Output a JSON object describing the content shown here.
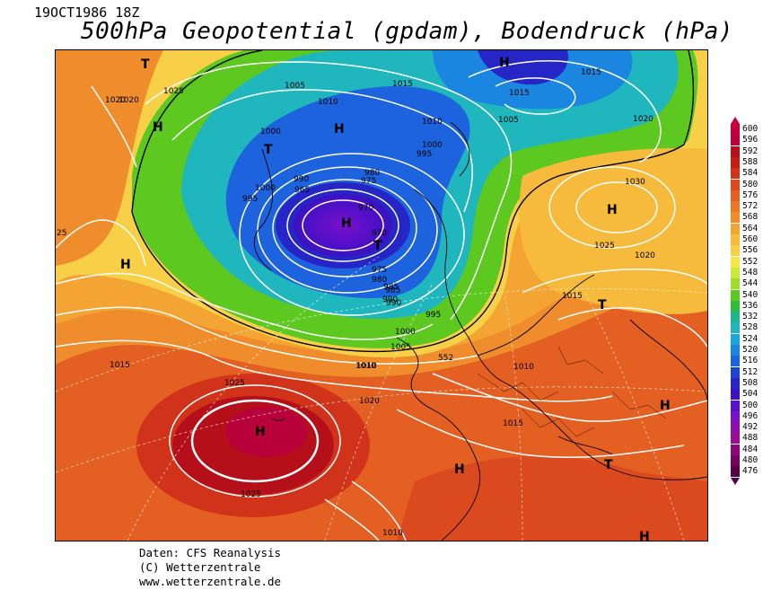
{
  "header": {
    "date": "19OCT1986 18Z",
    "title": "500hPa Geopotential (gpdam), Bodendruck (hPa)"
  },
  "footer": {
    "line1": "Daten: CFS Reanalysis",
    "line2": "(C) Wetterzentrale",
    "line3": "www.wetterzentrale.de"
  },
  "legend": {
    "values": [
      "600",
      "596",
      "592",
      "588",
      "584",
      "580",
      "576",
      "572",
      "568",
      "564",
      "560",
      "556",
      "552",
      "548",
      "544",
      "540",
      "536",
      "532",
      "528",
      "524",
      "520",
      "516",
      "512",
      "508",
      "504",
      "500",
      "496",
      "492",
      "488",
      "484",
      "480",
      "476"
    ],
    "colors": [
      "#c4003a",
      "#b8003a",
      "#b50f1a",
      "#c41e14",
      "#d0331a",
      "#db4a1e",
      "#e35f22",
      "#ea7726",
      "#ef8d2c",
      "#f3a432",
      "#f6bb3c",
      "#f8d048",
      "#f5e64a",
      "#cfe83c",
      "#9edb2c",
      "#5cc820",
      "#2fbd3a",
      "#20b58a",
      "#1fb7bd",
      "#1aa6dc",
      "#1a86e0",
      "#1c63dd",
      "#1e44d4",
      "#2626c6",
      "#3a12c0",
      "#5a0fc8",
      "#7a10c8",
      "#8c0ea8",
      "#9a0c92",
      "#8a0878",
      "#72065e",
      "#560244"
    ]
  },
  "pressure_labels": [
    "1020",
    "1025",
    "1005",
    "1010",
    "1015",
    "1000",
    "995",
    "1000",
    "1010",
    "1005",
    "1015",
    "1020",
    "1030",
    "1025",
    "1020",
    "1015",
    "1010",
    "1015",
    "1020",
    "1025",
    "1025",
    "1015",
    "1010",
    "1015",
    "1020",
    "995",
    "990",
    "985",
    "980",
    "975",
    "970",
    "990",
    "965",
    "980",
    "975",
    "970",
    "1000",
    "995",
    "985",
    "990",
    "1005",
    "1000",
    "1010",
    "1010",
    "25"
  ],
  "pressure_systems": [
    "H",
    "T",
    "H",
    "T",
    "H",
    "H",
    "H",
    "T",
    "H",
    "H",
    "T",
    "H",
    "T",
    "H",
    "H"
  ],
  "contour_value_552": "552"
}
